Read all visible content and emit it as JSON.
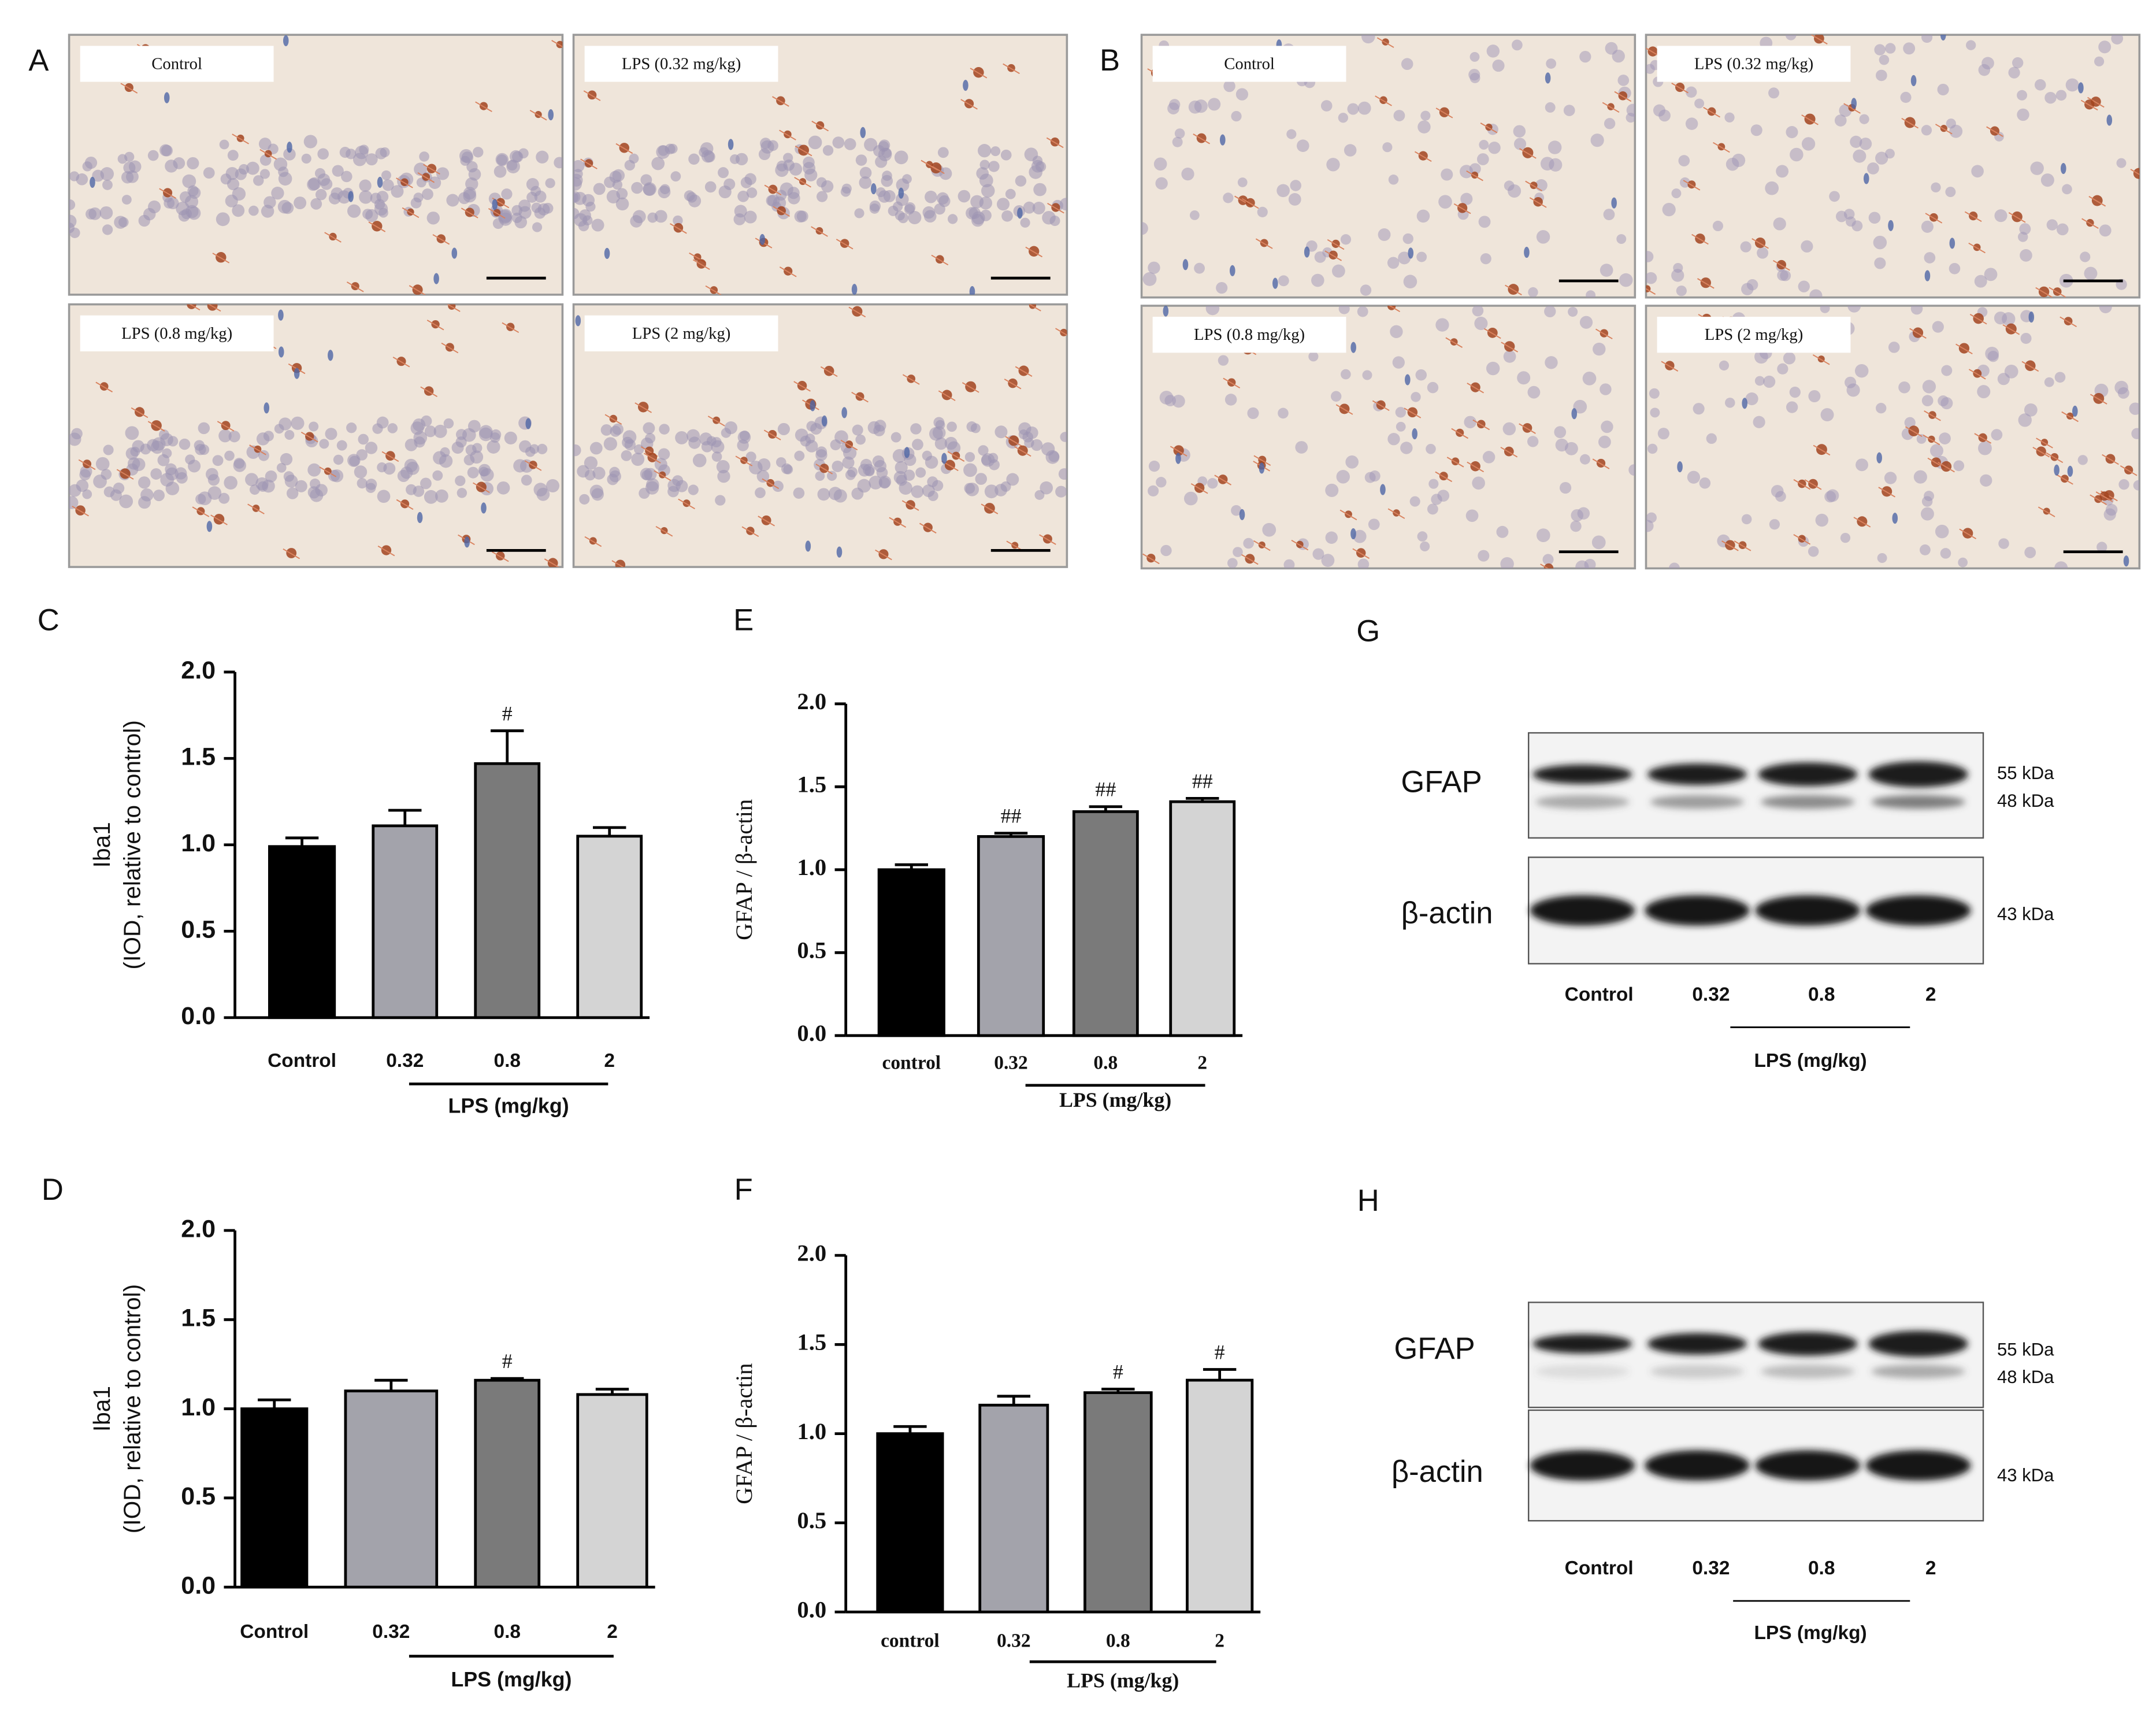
{
  "figure": {
    "panel_labels": [
      "A",
      "B",
      "C",
      "D",
      "E",
      "F",
      "G",
      "H"
    ]
  },
  "micrographs": [
    {
      "labels": [
        "Control",
        "LPS (0.32 mg/kg)",
        "LPS (0.8 mg/kg)",
        "LPS (2 mg/kg)"
      ]
    },
    {
      "labels": [
        "Control",
        "LPS (0.32 mg/kg)",
        "LPS (0.8 mg/kg)",
        "LPS (2 mg/kg)"
      ]
    }
  ],
  "blots": [
    {
      "bands": [
        "GFAP",
        "β-actin"
      ],
      "markers": [
        "55 kDa",
        "48 kDa",
        "43 kDa"
      ],
      "lanes": [
        "Control",
        "0.32",
        "0.8",
        "2"
      ],
      "group_label": "LPS (mg/kg)"
    },
    {
      "bands": [
        "GFAP",
        "β-actin"
      ],
      "markers": [
        "55 kDa",
        "48 kDa",
        "43 kDa"
      ],
      "lanes": [
        "Control",
        "0.32",
        "0.8",
        "2"
      ],
      "group_label": "LPS (mg/kg)"
    }
  ],
  "chart_data": [
    {
      "type": "bar",
      "ylabel": [
        "Iba1",
        "(IOD, relative to control)"
      ],
      "categories": [
        "Control",
        "0.32",
        "0.8",
        "2"
      ],
      "group_label": "LPS (mg/kg)",
      "values": [
        0.99,
        1.11,
        1.47,
        1.05
      ],
      "errors": [
        0.05,
        0.09,
        0.19,
        0.05
      ],
      "significance": [
        null,
        null,
        "#",
        null
      ],
      "colors": [
        "#000000",
        "#a3a3ab",
        "#7a7a7a",
        "#d4d4d4"
      ],
      "ylim": [
        0,
        2
      ],
      "yticks": [
        {
          "value": 0,
          "label": "0.0"
        },
        0.5,
        {
          "value": 1,
          "label": "1.0"
        },
        1.5,
        {
          "value": 2,
          "label": "2.0"
        }
      ]
    },
    {
      "type": "bar",
      "ylabel": [
        "Iba1",
        "(IOD, relative to control)"
      ],
      "categories": [
        "Control",
        "0.32",
        "0.8",
        "2"
      ],
      "group_label": "LPS (mg/kg)",
      "values": [
        1.0,
        1.1,
        1.16,
        1.08
      ],
      "errors": [
        0.05,
        0.06,
        0.01,
        0.03
      ],
      "significance": [
        null,
        null,
        "#",
        null
      ],
      "colors": [
        "#000000",
        "#a3a3ab",
        "#7a7a7a",
        "#d4d4d4"
      ],
      "ylim": [
        0,
        2
      ],
      "yticks": [
        {
          "value": 0,
          "label": "0.0"
        },
        0.5,
        {
          "value": 1,
          "label": "1.0"
        },
        1.5,
        {
          "value": 2,
          "label": "2.0"
        }
      ]
    },
    {
      "type": "bar",
      "ylabel": [
        "GFAP / β-actin"
      ],
      "categories": [
        "control",
        "0.32",
        "0.8",
        "2"
      ],
      "group_label": "LPS (mg/kg)",
      "values": [
        1.0,
        1.2,
        1.35,
        1.41
      ],
      "errors": [
        0.03,
        0.02,
        0.03,
        0.02
      ],
      "significance": [
        null,
        "##",
        "##",
        "##"
      ],
      "colors": [
        "#000000",
        "#a3a3ab",
        "#7a7a7a",
        "#d4d4d4"
      ],
      "ylim": [
        0,
        2
      ],
      "yticks": [
        {
          "value": 0,
          "label": "0.0"
        },
        0.5,
        {
          "value": 1,
          "label": "1.0"
        },
        1.5,
        {
          "value": 2,
          "label": "2.0"
        }
      ]
    },
    {
      "type": "bar",
      "ylabel": [
        "GFAP / β-actin"
      ],
      "categories": [
        "control",
        "0.32",
        "0.8",
        "2"
      ],
      "group_label": "LPS (mg/kg)",
      "values": [
        1.0,
        1.16,
        1.23,
        1.3
      ],
      "errors": [
        0.04,
        0.05,
        0.02,
        0.06
      ],
      "significance": [
        null,
        null,
        "#",
        "#"
      ],
      "colors": [
        "#000000",
        "#a3a3ab",
        "#7a7a7a",
        "#d4d4d4"
      ],
      "ylim": [
        0,
        2
      ],
      "yticks": [
        {
          "value": 0,
          "label": "0.0"
        },
        0.5,
        {
          "value": 1,
          "label": "1.0"
        },
        1.5,
        {
          "value": 2,
          "label": "2.0"
        }
      ]
    }
  ]
}
